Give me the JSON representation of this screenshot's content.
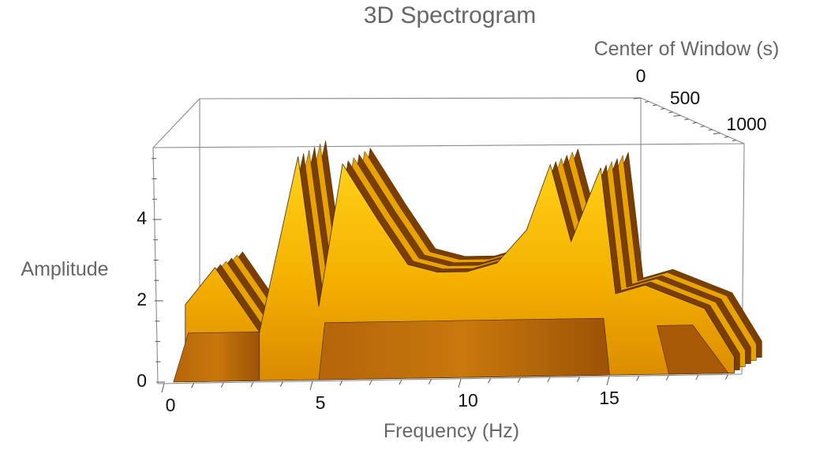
{
  "chart_data": {
    "type": "area",
    "title": "3D Spectrogram",
    "xlabel": "Frequency (Hz)",
    "ylabel": "Center of Window (s)",
    "zlabel": "Amplitude",
    "x_ticks": [
      "0",
      "5",
      "10",
      "15"
    ],
    "y_ticks": [
      "0",
      "500",
      "1000"
    ],
    "z_ticks": [
      "0",
      "2",
      "4"
    ],
    "xlim": [
      0,
      19.5
    ],
    "ylim": [
      0,
      1200
    ],
    "zlim": [
      0,
      5.7
    ],
    "surface_color": "#f5b800",
    "shadow_color": "#8a4a00",
    "spectrum_x": [
      0.5,
      1.5,
      3.0,
      4.3,
      5.0,
      5.8,
      7.0,
      8.0,
      9.0,
      10.0,
      11.0,
      12.0,
      12.8,
      13.5,
      14.5,
      15.0,
      16.0,
      17.0,
      18.0,
      19.0
    ],
    "spectrum_z": [
      1.9,
      2.8,
      1.2,
      5.5,
      1.8,
      5.3,
      3.9,
      2.8,
      2.6,
      2.6,
      2.8,
      3.6,
      5.2,
      3.3,
      5.1,
      2.0,
      2.2,
      1.9,
      1.6,
      0.4
    ]
  }
}
